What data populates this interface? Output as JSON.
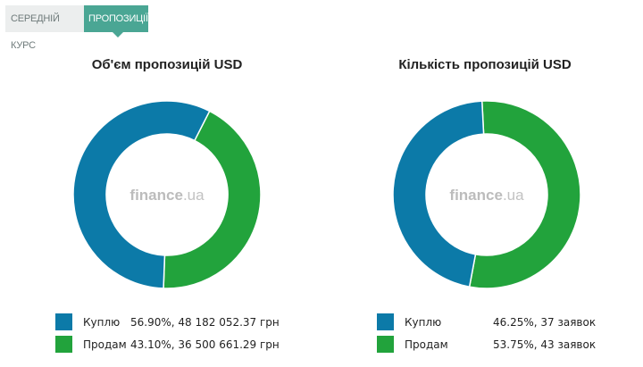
{
  "tabs": [
    {
      "label": "Середній курс",
      "active": false
    },
    {
      "label": "Пропозиції",
      "active": true
    }
  ],
  "watermark": {
    "brand": "finance",
    "domain": ".ua"
  },
  "colors": {
    "buy": "#0c7aa8",
    "sell": "#22a33c",
    "tab_active": "#4aa694",
    "tab_inactive": "#eceeee"
  },
  "chart_data": [
    {
      "type": "pie",
      "title": "Об'єм пропозицій USD",
      "donut": true,
      "series": [
        {
          "name": "Куплю",
          "value": 56.9,
          "label": "56.90%, 48 182 052.37 грн",
          "color": "#0c7aa8"
        },
        {
          "name": "Продам",
          "value": 43.1,
          "label": "43.10%, 36 500 661.29 грн",
          "color": "#22a33c"
        }
      ],
      "legend_position": "bottom"
    },
    {
      "type": "pie",
      "title": "Кількість пропозицій USD",
      "donut": true,
      "series": [
        {
          "name": "Куплю",
          "value": 46.25,
          "label": "46.25%, 37 заявок",
          "color": "#0c7aa8"
        },
        {
          "name": "Продам",
          "value": 53.75,
          "label": "53.75%, 43 заявок",
          "color": "#22a33c"
        }
      ],
      "legend_position": "bottom"
    }
  ]
}
